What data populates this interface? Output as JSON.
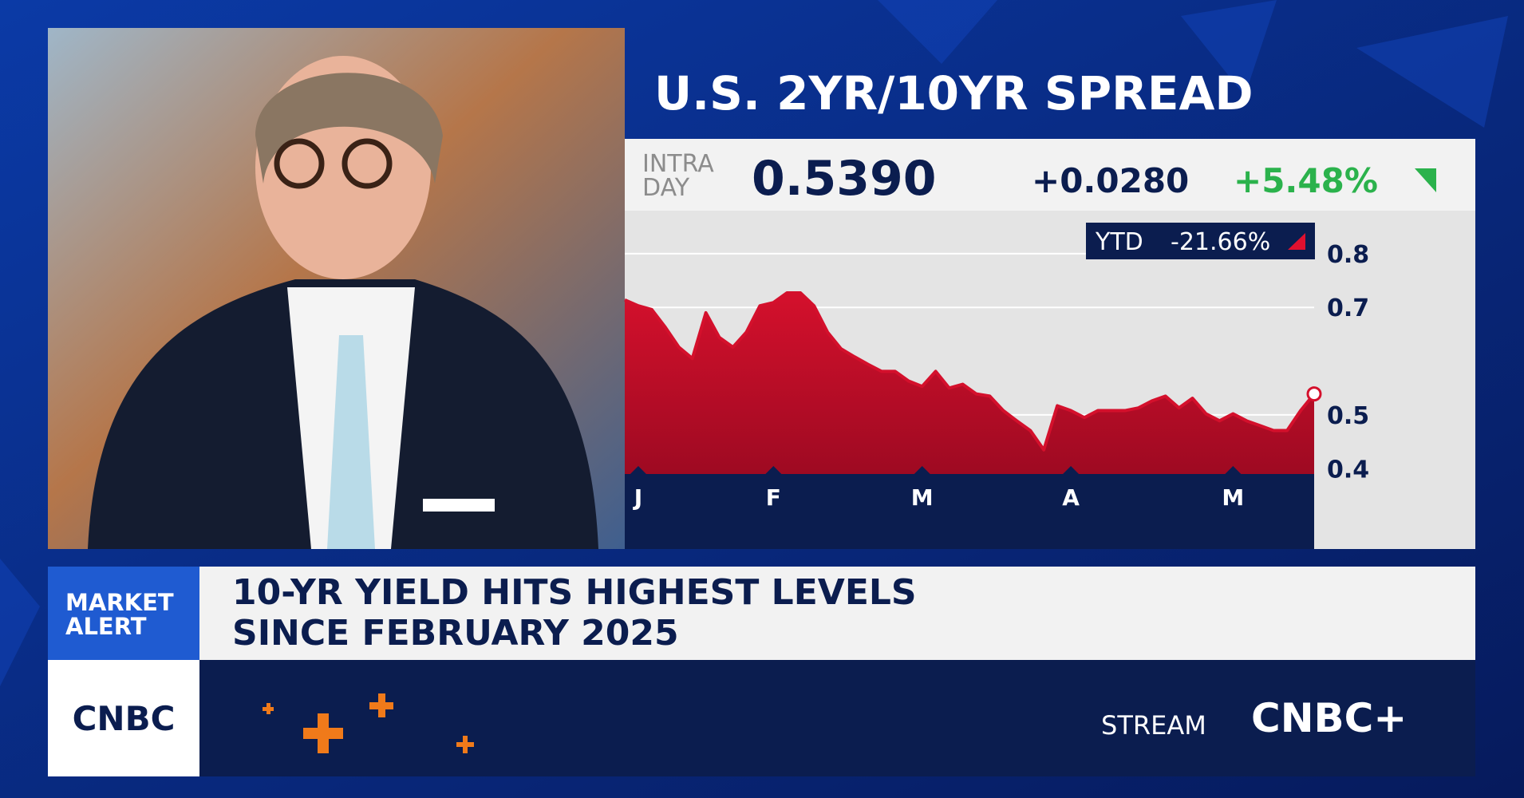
{
  "title": "U.S. 2YR/10YR SPREAD",
  "quote": {
    "label_lines": [
      "INTRA",
      "DAY"
    ],
    "last": "0.5390",
    "change": "+0.0280",
    "change_pct": "+5.48%",
    "ytd_label": "YTD",
    "ytd_change": "-21.66%"
  },
  "chart_data": {
    "type": "area",
    "categories": [
      null,
      "J",
      null,
      null,
      null,
      null,
      null,
      null,
      null,
      null,
      null,
      "F",
      null,
      null,
      null,
      null,
      null,
      null,
      null,
      null,
      null,
      null,
      "M",
      null,
      null,
      null,
      null,
      null,
      null,
      null,
      null,
      null,
      null,
      "A",
      null,
      null,
      null,
      null,
      null,
      null,
      null,
      null,
      null,
      null,
      null,
      "M",
      null,
      null,
      null,
      null,
      null,
      null
    ],
    "values": [
      0.714,
      0.703,
      0.696,
      0.663,
      0.626,
      0.605,
      0.69,
      0.644,
      0.626,
      0.654,
      0.703,
      0.709,
      0.727,
      0.727,
      0.703,
      0.654,
      0.623,
      0.608,
      0.594,
      0.581,
      0.581,
      0.563,
      0.553,
      0.581,
      0.55,
      0.557,
      0.539,
      0.535,
      0.508,
      0.489,
      0.471,
      0.435,
      0.517,
      0.508,
      0.495,
      0.508,
      0.508,
      0.508,
      0.513,
      0.526,
      0.535,
      0.513,
      0.531,
      0.502,
      0.489,
      0.502,
      0.489,
      0.48,
      0.471,
      0.471,
      0.508,
      0.539
    ],
    "color": "#d4102c",
    "ylim": [
      0.39,
      0.88
    ],
    "yticks": [
      0.8,
      0.7,
      0.5,
      0.4
    ],
    "grid": true
  },
  "banner": {
    "tag_lines": [
      "MARKET",
      "ALERT"
    ],
    "headline_lines": [
      "10-YR YIELD HITS HIGHEST LEVELS",
      "SINCE FEBRUARY 2025"
    ]
  },
  "footer": {
    "logo": "CNBC",
    "stream_label": "STREAM",
    "stream_logo": "CNBC+"
  }
}
